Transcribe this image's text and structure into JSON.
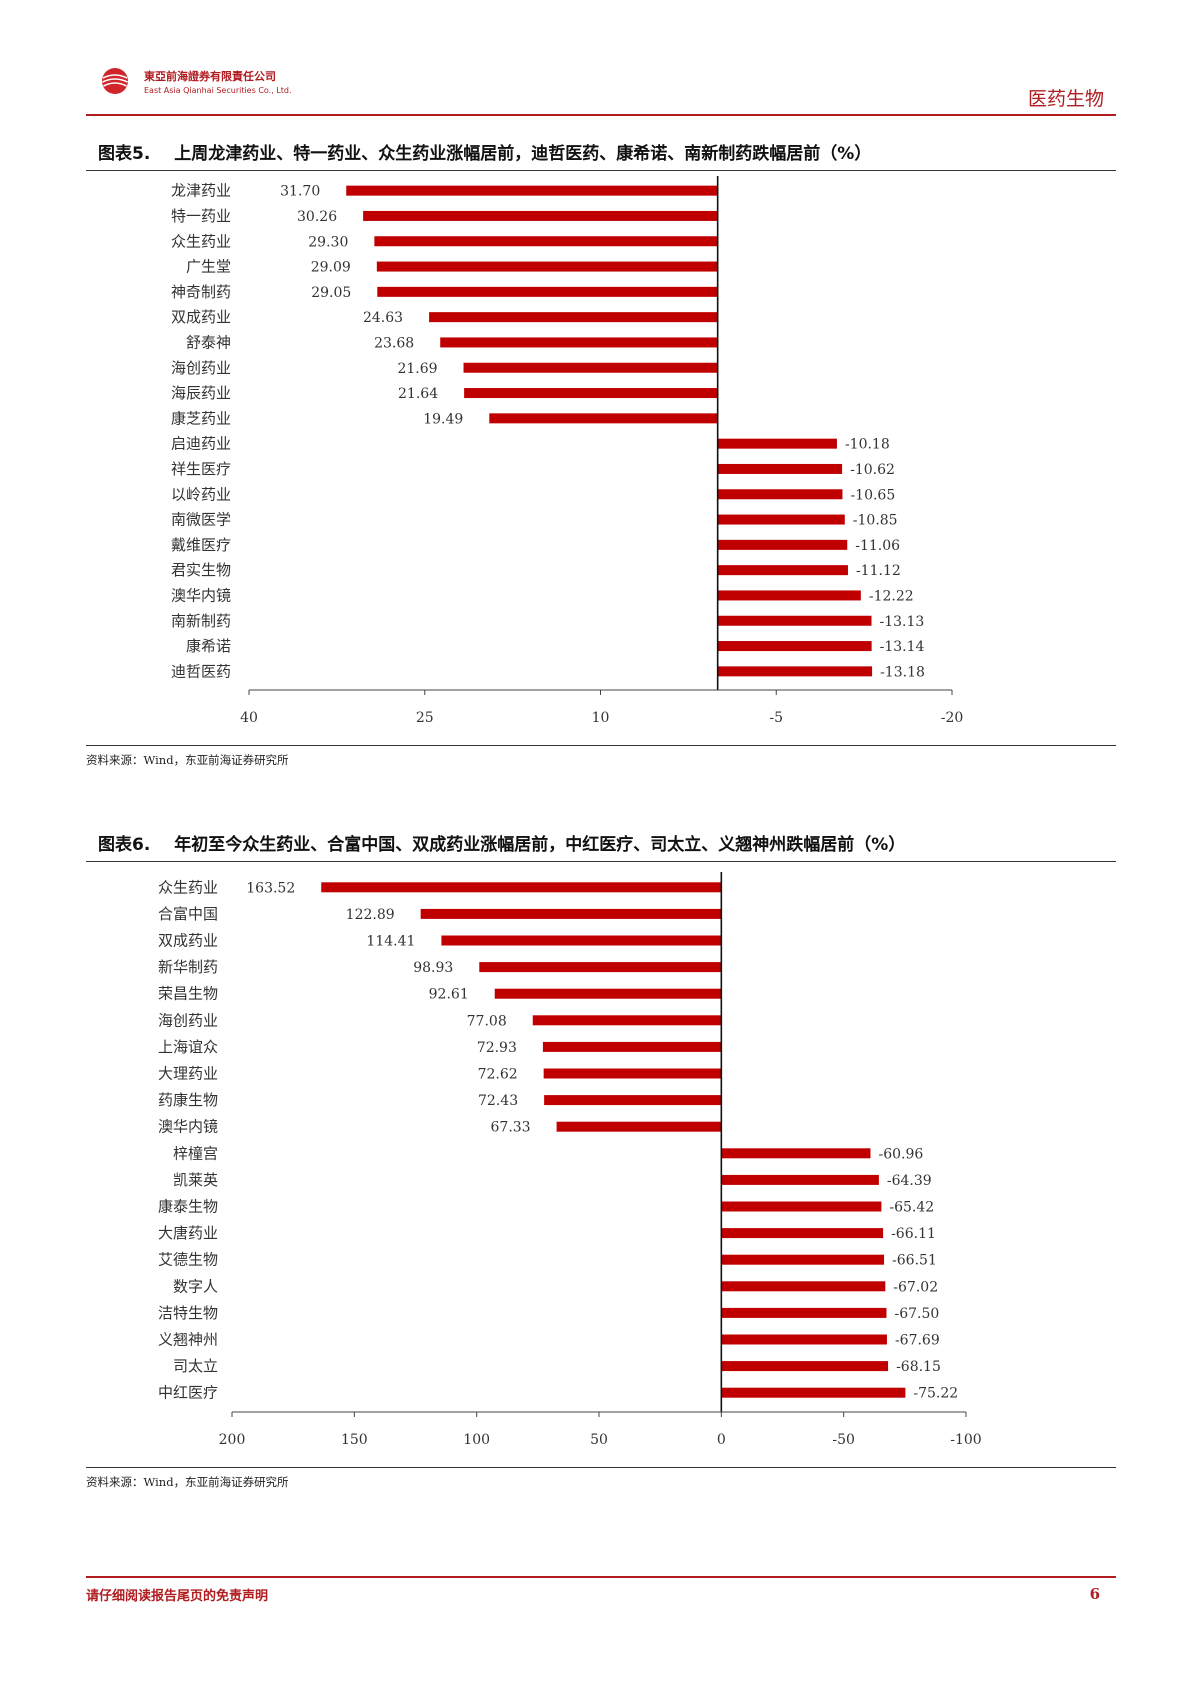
{
  "header": {
    "company_cn": "東亞前海證券有限責任公司",
    "company_en": "East Asia Qianhai Securities Co., Ltd.",
    "logo_icon": "logo-globe-icon",
    "section": "医药生物"
  },
  "figures": [
    {
      "label": "图表5.",
      "title": "上周龙津药业、特一药业、众生药业涨幅居前，迪哲医药、康希诺、南新制药跌幅居前（%）",
      "source": "资料来源：Wind，东亚前海证券研究所"
    },
    {
      "label": "图表6.",
      "title": "年初至今众生药业、合富中国、双成药业涨幅居前，中红医疗、司太立、义翘神州跌幅居前（%）",
      "source": "资料来源：Wind，东亚前海证券研究所"
    }
  ],
  "chart_data": [
    {
      "type": "bar",
      "orientation": "horizontal",
      "x_reversed": true,
      "xlim": [
        40,
        -20
      ],
      "xticks": [
        40,
        25,
        10,
        -5,
        -20
      ],
      "categories": [
        "龙津药业",
        "特一药业",
        "众生药业",
        "广生堂",
        "神奇制药",
        "双成药业",
        "舒泰神",
        "海创药业",
        "海辰药业",
        "康芝药业",
        "启迪药业",
        "祥生医疗",
        "以岭药业",
        "南微医学",
        "戴维医疗",
        "君实生物",
        "澳华内镜",
        "南新制药",
        "康希诺",
        "迪哲医药"
      ],
      "values": [
        31.7,
        30.26,
        29.3,
        29.09,
        29.05,
        24.63,
        23.68,
        21.69,
        21.64,
        19.49,
        -10.18,
        -10.62,
        -10.65,
        -10.85,
        -11.06,
        -11.12,
        -12.22,
        -13.13,
        -13.14,
        -13.18
      ],
      "value_labels": [
        "31.70",
        "30.26",
        "29.30",
        "29.09",
        "29.05",
        "24.63",
        "23.68",
        "21.69",
        "21.64",
        "19.49",
        "-10.18",
        "-10.62",
        "-10.65",
        "-10.85",
        "-11.06",
        "-11.12",
        "-12.22",
        "-13.13",
        "-13.14",
        "-13.18"
      ],
      "bar_color": "#c00000"
    },
    {
      "type": "bar",
      "orientation": "horizontal",
      "x_reversed": true,
      "xlim": [
        200,
        -100
      ],
      "xticks": [
        200,
        150,
        100,
        50,
        0,
        -50,
        -100
      ],
      "categories": [
        "众生药业",
        "合富中国",
        "双成药业",
        "新华制药",
        "荣昌生物",
        "海创药业",
        "上海谊众",
        "大理药业",
        "药康生物",
        "澳华内镜",
        "梓橦宫",
        "凯莱英",
        "康泰生物",
        "大唐药业",
        "艾德生物",
        "数字人",
        "洁特生物",
        "义翘神州",
        "司太立",
        "中红医疗"
      ],
      "values": [
        163.52,
        122.89,
        114.41,
        98.93,
        92.61,
        77.08,
        72.93,
        72.62,
        72.43,
        67.33,
        -60.96,
        -64.39,
        -65.42,
        -66.11,
        -66.51,
        -67.02,
        -67.5,
        -67.69,
        -68.15,
        -75.22
      ],
      "value_labels": [
        "163.52",
        "122.89",
        "114.41",
        "98.93",
        "92.61",
        "77.08",
        "72.93",
        "72.62",
        "72.43",
        "67.33",
        "-60.96",
        "-64.39",
        "-65.42",
        "-66.11",
        "-66.51",
        "-67.02",
        "-67.50",
        "-67.69",
        "-68.15",
        "-75.22"
      ],
      "bar_color": "#c00000"
    }
  ],
  "footer": {
    "disclaimer": "请仔细阅读报告尾页的免责声明",
    "page": "6"
  }
}
